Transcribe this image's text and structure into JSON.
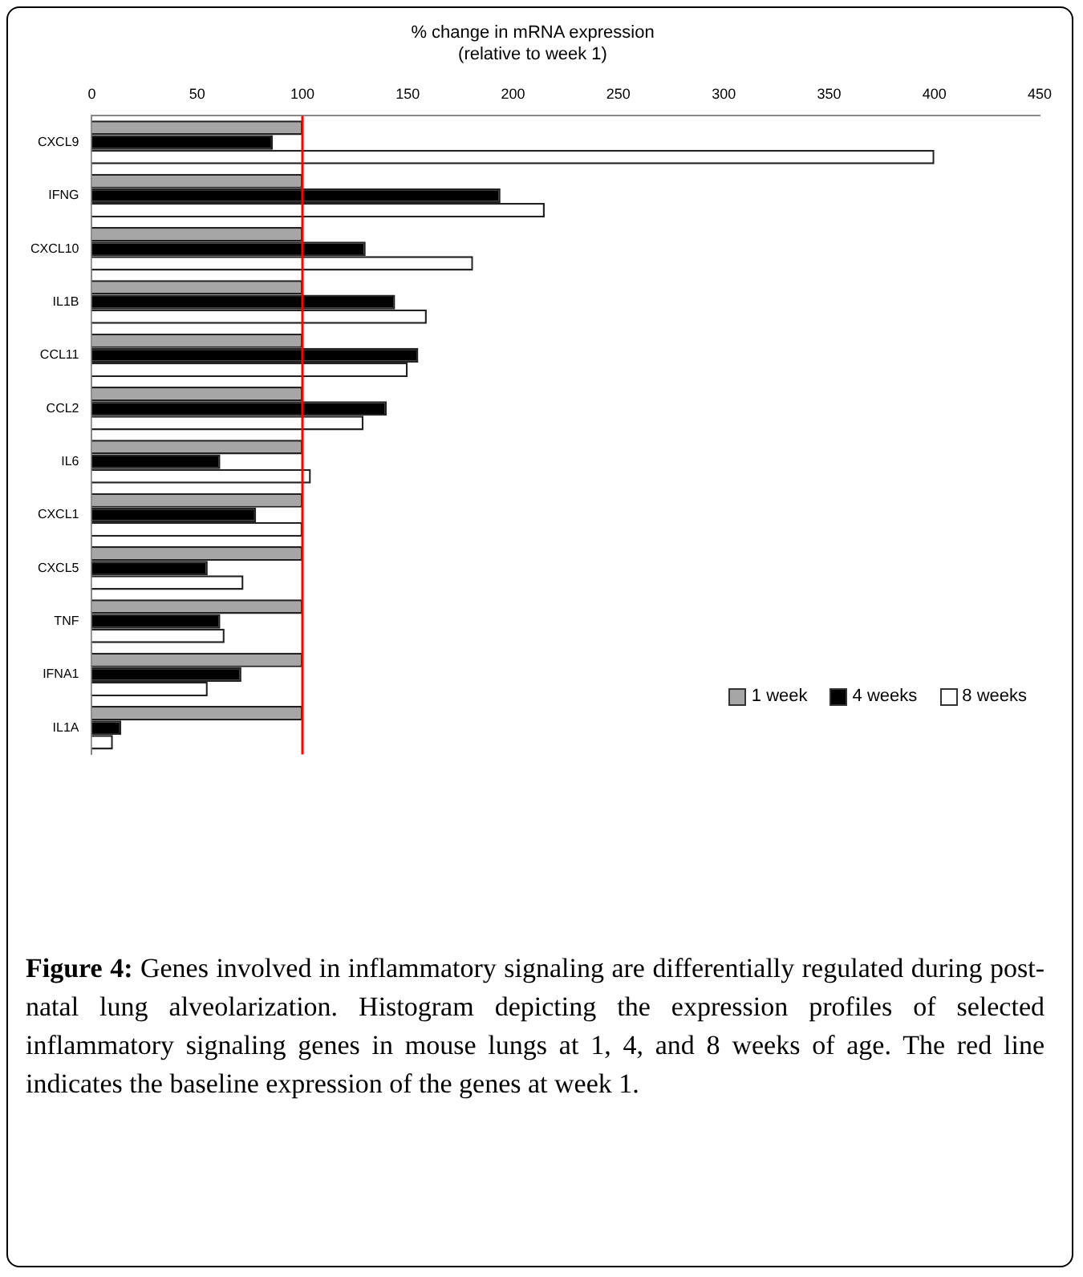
{
  "chart_data": {
    "type": "bar",
    "orientation": "horizontal",
    "title": "% change in mRNA expression\n(relative to week 1)",
    "categories": [
      "CXCL9",
      "IFNG",
      "CXCL10",
      "IL1B",
      "CCL11",
      "CCL2",
      "IL6",
      "CXCL1",
      "CXCL5",
      "TNF",
      "IFNA1",
      "IL1A"
    ],
    "series": [
      {
        "name": "1 week",
        "color": "#a6a6a6",
        "values": [
          100,
          100,
          100,
          100,
          100,
          100,
          100,
          100,
          100,
          100,
          100,
          100
        ]
      },
      {
        "name": "4 weeks",
        "color": "#000000",
        "values": [
          86,
          194,
          130,
          144,
          155,
          140,
          61,
          78,
          55,
          61,
          71,
          14
        ]
      },
      {
        "name": "8 weeks",
        "color": "#ffffff",
        "values": [
          400,
          215,
          181,
          159,
          150,
          129,
          104,
          100,
          72,
          63,
          55,
          10
        ]
      }
    ],
    "xlim": [
      0,
      450
    ],
    "xticks": [
      0,
      50,
      100,
      150,
      200,
      250,
      300,
      350,
      400,
      450
    ],
    "grid": false,
    "legend": "bottom right",
    "ref_lines": [
      {
        "axis": "x",
        "value": 100,
        "color": "#ff0000"
      }
    ],
    "annotations": [
      "Figure 4: Genes involved in inflammatory signaling are differentially regulated during post-natal lung alveolarization. Histogram depicting the expression profiles of selected inflammatory signaling genes in mouse lungs at 1, 4, and 8 weeks of age. The red line indicates the baseline expression of the genes at week 1."
    ]
  }
}
